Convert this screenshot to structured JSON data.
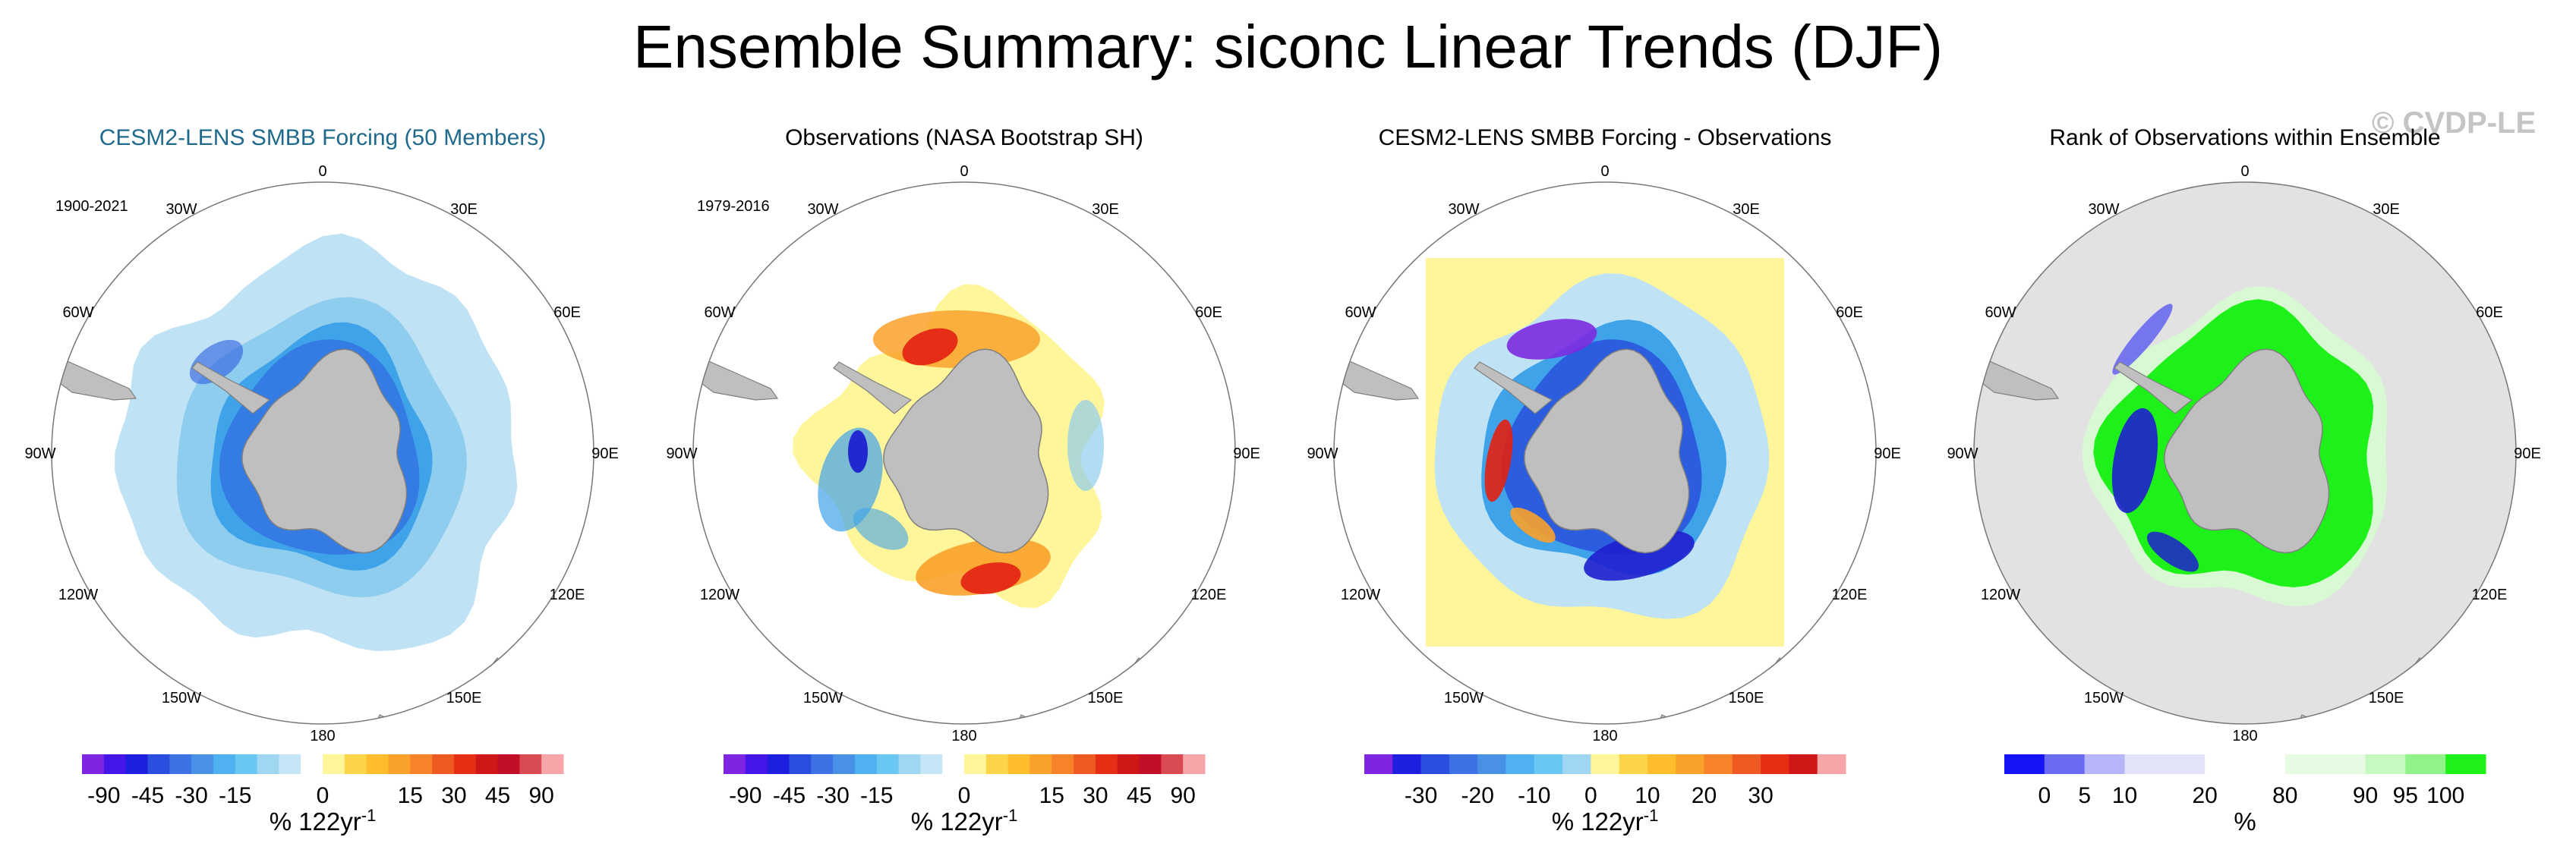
{
  "title": "Ensemble Summary: siconc Linear Trends (DJF)",
  "watermark": "© CVDP-LE",
  "colors": {
    "land": "#bfbfbf",
    "land_edge": "#7f7f7f",
    "title_blue": "#1f6a8c",
    "pale_blue": "#bfe2f4",
    "light_blue": "#8fcdef",
    "mid_blue": "#3fa3e9",
    "deep_blue": "#2c5dde",
    "navy": "#1f1fcf",
    "purple": "#7c2ae0",
    "pale_yellow": "#fff59a",
    "orange": "#f9a12a",
    "red": "#e22012",
    "green": "#1ef01a",
    "pale_green": "#d8f9d4",
    "rank_bg": "#e2e2e2"
  },
  "longitude_labels": [
    "0",
    "30E",
    "60E",
    "90E",
    "120E",
    "150E",
    "180",
    "150W",
    "120W",
    "90W",
    "60W",
    "30W"
  ],
  "colorbar_unit": "% 122yr",
  "colorbar_unit_sup": "-1",
  "chart_data": [
    {
      "type": "heatmap",
      "projection": "south-polar-stereographic",
      "title": "CESM2-LENS SMBB Forcing (50 Members)",
      "period": "1900-2021",
      "field": "siconc linear trend",
      "pattern": "ensemble",
      "colorbar": {
        "colors": [
          "#7e25e2",
          "#4615e8",
          "#1e1ede",
          "#2a4fde",
          "#3c72e4",
          "#4991e7",
          "#4fb1f0",
          "#6ac7f3",
          "#9fd6f1",
          "#c5e6f7",
          "#ffffff",
          "#fff59a",
          "#fbd44a",
          "#fdbd2c",
          "#f9a12a",
          "#f7822a",
          "#ef5a23",
          "#e52f15",
          "#cf1717",
          "#c00f26",
          "#d94a52",
          "#f7a5a8"
        ],
        "ticks": [
          "-90",
          "-45",
          "-30",
          "-15",
          "0",
          "15",
          "30",
          "45",
          "90"
        ],
        "tick_edges": [
          1,
          3,
          5,
          7,
          11,
          15,
          17,
          19,
          21
        ],
        "unit": "% 122yr-1"
      }
    },
    {
      "type": "heatmap",
      "projection": "south-polar-stereographic",
      "title": "Observations (NASA Bootstrap SH)",
      "period": "1979-2016",
      "field": "siconc linear trend",
      "pattern": "observations",
      "colorbar": {
        "colors": [
          "#7e25e2",
          "#4615e8",
          "#1e1ede",
          "#2a4fde",
          "#3c72e4",
          "#4991e7",
          "#4fb1f0",
          "#6ac7f3",
          "#9fd6f1",
          "#c5e6f7",
          "#ffffff",
          "#fff59a",
          "#fbd44a",
          "#fdbd2c",
          "#f9a12a",
          "#f7822a",
          "#ef5a23",
          "#e52f15",
          "#cf1717",
          "#c00f26",
          "#d94a52",
          "#f7a5a8"
        ],
        "ticks": [
          "-90",
          "-45",
          "-30",
          "-15",
          "0",
          "15",
          "30",
          "45",
          "90"
        ],
        "tick_edges": [
          1,
          3,
          5,
          7,
          11,
          15,
          17,
          19,
          21
        ],
        "unit": "% 122yr-1"
      }
    },
    {
      "type": "heatmap",
      "projection": "south-polar-stereographic",
      "title": "CESM2-LENS SMBB Forcing - Observations",
      "period": "",
      "field": "siconc linear trend difference",
      "pattern": "difference",
      "colorbar": {
        "colors": [
          "#7e25e2",
          "#1e1ede",
          "#2a4fde",
          "#3c72e4",
          "#4991e7",
          "#4fb1f0",
          "#6ac7f3",
          "#9fd6f1",
          "#fff59a",
          "#fbd44a",
          "#fdbd2c",
          "#f9a12a",
          "#f7822a",
          "#ef5a23",
          "#e52f15",
          "#cf1717",
          "#f7a5a8"
        ],
        "ticks": [
          "-30",
          "-20",
          "-10",
          "0",
          "10",
          "20",
          "30"
        ],
        "tick_edges": [
          2,
          4,
          6,
          8,
          10,
          12,
          14
        ],
        "unit": "% 122yr-1"
      }
    },
    {
      "type": "heatmap",
      "projection": "south-polar-stereographic",
      "title": "Rank of Observations within Ensemble",
      "period": "",
      "field": "rank of observations",
      "pattern": "rank",
      "colorbar": {
        "colors": [
          "#1414f5",
          "#6a6af2",
          "#b5b5f7",
          "#e2e2f8",
          "#e2e2f8",
          "#ffffff",
          "#ffffff",
          "#e6fbe2",
          "#e6fbe2",
          "#c6f9c0",
          "#8ff38a",
          "#1ef01a"
        ],
        "ticks": [
          "0",
          "5",
          "10",
          "20",
          "80",
          "90",
          "95",
          "100"
        ],
        "tick_edges": [
          1,
          2,
          3,
          5,
          7,
          9,
          10,
          11
        ],
        "unit": "%"
      }
    }
  ]
}
